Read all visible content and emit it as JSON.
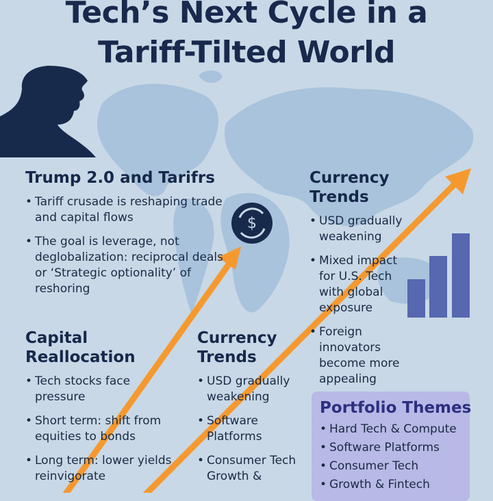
{
  "title": [
    "Tech’s Next Cycle in a",
    "Tariff-Tilted World"
  ],
  "sections": [
    {
      "heading": "Trump 2.0 and Tarifrs",
      "bullets": [
        "Tariff crusade is reshaping trade and capital flows",
        "The goal is leverage, not deglobalization: reciprocal deals or ‘Strategic optionality’ of reshoring"
      ]
    },
    {
      "heading": "Currency Trends",
      "bullets": [
        "USD gradually weakening",
        "Mixed impact for U.S. Tech with global exposure",
        "Foreign innovators become more appealing"
      ]
    },
    {
      "heading": "Capital Reallocation",
      "bullets": [
        "Tech stocks face pressure",
        "Short term: shift from equities to bonds",
        "Long term: lower yields reinvigorate"
      ]
    },
    {
      "heading": "Currency Trends",
      "bullets": [
        "USD gradually weakening",
        "Software Platforms",
        "Consumer Tech Growth &"
      ]
    },
    {
      "heading": "Portfolio Themes",
      "bullets": [
        "Hard Tech & Compute",
        "Software Platforms",
        "Consumer Tech",
        "Growth & Fintech"
      ]
    }
  ]
}
